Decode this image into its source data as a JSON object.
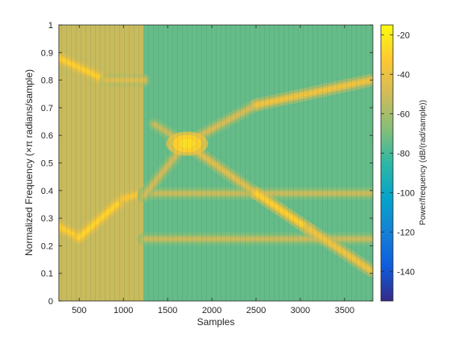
{
  "chart_data": {
    "type": "heatmap",
    "subtype": "spectrogram",
    "title": "",
    "xlabel": "Samples",
    "ylabel": "Normalized Frequency  (×π radians/sample)",
    "xlim": [
      270,
      3820
    ],
    "ylim": [
      0,
      1
    ],
    "x_ticks": [
      500,
      1000,
      1500,
      2000,
      2500,
      3000,
      3500
    ],
    "x_tick_labels": [
      "500",
      "1000",
      "1500",
      "2000",
      "2500",
      "3000",
      "3500"
    ],
    "y_ticks": [
      0,
      0.1,
      0.2,
      0.3,
      0.4,
      0.5,
      0.6,
      0.7,
      0.8,
      0.9,
      1
    ],
    "y_tick_labels": [
      "0",
      "0.1",
      "0.2",
      "0.3",
      "0.4",
      "0.5",
      "0.6",
      "0.7",
      "0.8",
      "0.9",
      "1"
    ],
    "grid": false,
    "colormap": "parula",
    "colorbar": {
      "label": "Power/frequency (dB/(rad/sample))",
      "placement": "right",
      "range": [
        -155,
        -15
      ],
      "ticks": [
        -140,
        -120,
        -100,
        -80,
        -60,
        -40,
        -20
      ],
      "tick_labels": [
        "-140",
        "-120",
        "-100",
        "-80",
        "-60",
        "-40",
        "-20"
      ]
    },
    "background_level": {
      "segment_1_samples": [
        270,
        1230
      ],
      "segment_1_db": -52,
      "segment_2_samples": [
        1230,
        3820
      ],
      "segment_2_db": -74
    },
    "tones": [
      {
        "samples": [
          270,
          800
        ],
        "frequency": [
          0.88,
          0.8
        ],
        "peak_db": -30
      },
      {
        "samples": [
          800,
          1230
        ],
        "frequency": [
          0.8,
          0.8
        ],
        "peak_db": -45
      },
      {
        "samples": [
          270,
          500
        ],
        "frequency": [
          0.27,
          0.23
        ],
        "peak_db": -30
      },
      {
        "samples": [
          500,
          1000
        ],
        "frequency": [
          0.23,
          0.37
        ],
        "peak_db": -28
      },
      {
        "samples": [
          1000,
          1200
        ],
        "frequency": [
          0.37,
          0.39
        ],
        "peak_db": -34
      },
      {
        "samples": [
          1230,
          3820
        ],
        "frequency": [
          0.225,
          0.225
        ],
        "peak_db": -52
      },
      {
        "samples": [
          1230,
          3820
        ],
        "frequency": [
          0.39,
          0.39
        ],
        "peak_db": -52
      },
      {
        "samples": [
          1230,
          1700
        ],
        "frequency": [
          0.38,
          0.57
        ],
        "peak_db": -50
      },
      {
        "samples": [
          1700,
          2500
        ],
        "frequency": [
          0.57,
          0.39
        ],
        "peak_db": -45
      },
      {
        "samples": [
          2500,
          3100
        ],
        "frequency": [
          0.39,
          0.26
        ],
        "peak_db": -30
      },
      {
        "samples": [
          3100,
          3800
        ],
        "frequency": [
          0.26,
          0.11
        ],
        "peak_db": -38
      },
      {
        "samples": [
          1350,
          1700
        ],
        "frequency": [
          0.64,
          0.57
        ],
        "peak_db": -52
      },
      {
        "samples": [
          1700,
          2500
        ],
        "frequency": [
          0.57,
          0.71
        ],
        "peak_db": -48
      },
      {
        "samples": [
          2500,
          3800
        ],
        "frequency": [
          0.71,
          0.8
        ],
        "peak_db": -38
      }
    ],
    "hotspot": {
      "sample": 1720,
      "frequency": 0.57,
      "peak_db": -25
    },
    "colors": {
      "low": "#3e26a8",
      "mid_low": "#2e87f7",
      "mid": "#2bb7a5",
      "mid_high": "#a6be35",
      "high": "#f9fb15"
    }
  }
}
